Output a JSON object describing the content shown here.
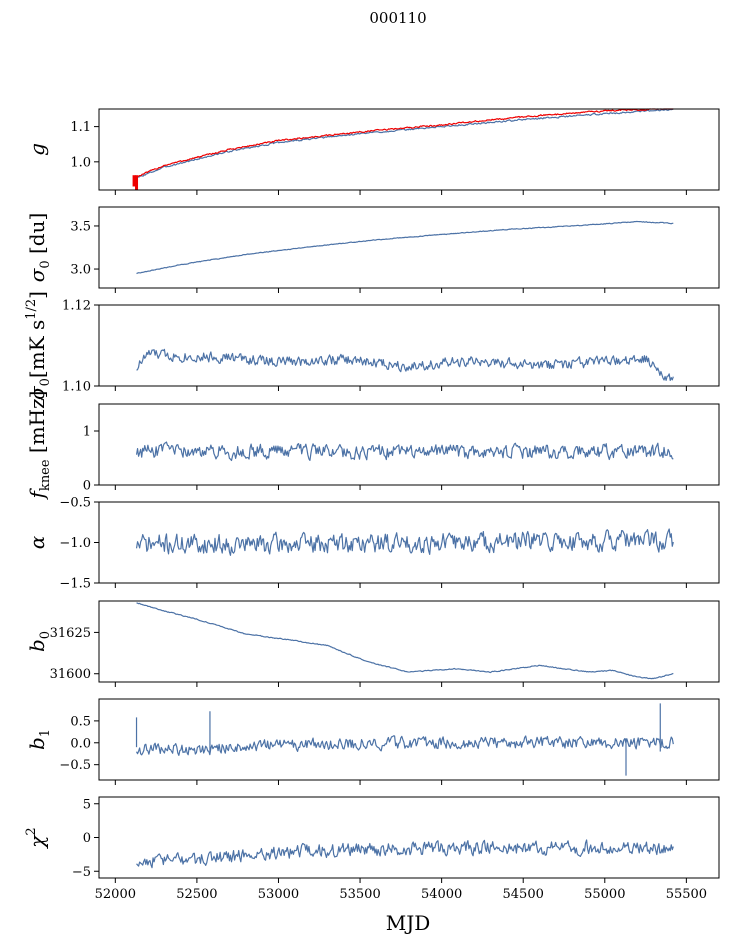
{
  "figure": {
    "title": "000110",
    "xlabel": "MJD"
  },
  "chart_data": [
    {
      "type": "line",
      "ylabel_main": "g",
      "ylabel_sub": "",
      "ylabel_sup": "",
      "xlim": [
        51900,
        55700
      ],
      "ylim": [
        0.92,
        1.15
      ],
      "yticks": [
        1.0,
        1.1
      ],
      "ytick_labels": [
        "1.0",
        "1.1"
      ],
      "series": [
        {
          "color": "#4c72a6",
          "width": 1.3,
          "noise": 0.002,
          "points": [
            [
              52120,
              0.952
            ],
            [
              52300,
              0.985
            ],
            [
              52700,
              1.03
            ],
            [
              53000,
              1.055
            ],
            [
              53500,
              1.08
            ],
            [
              54000,
              1.1
            ],
            [
              54500,
              1.12
            ],
            [
              55000,
              1.137
            ],
            [
              55300,
              1.145
            ],
            [
              55420,
              1.15
            ]
          ]
        },
        {
          "color": "#ee0000",
          "width": 2.6,
          "noise": 0.002,
          "points": [
            [
              52120,
              0.955
            ],
            [
              52300,
              0.99
            ],
            [
              52700,
              1.035
            ],
            [
              53000,
              1.06
            ],
            [
              53500,
              1.085
            ],
            [
              54000,
              1.105
            ],
            [
              54500,
              1.128
            ],
            [
              55000,
              1.145
            ],
            [
              55300,
              1.15
            ],
            [
              55420,
              1.152
            ]
          ]
        }
      ],
      "spikes": [
        {
          "x": 52130,
          "y0": 0.92,
          "y1": 0.962,
          "color": "#ee0000"
        },
        {
          "x": 52115,
          "y0": 0.93,
          "y1": 0.962,
          "color": "#ee0000"
        }
      ]
    },
    {
      "type": "line",
      "ylabel_main": "σ",
      "ylabel_sub": "0",
      "ylabel_sup": "",
      "ylabel_tail": " [du]",
      "xlim": [
        51900,
        55700
      ],
      "ylim": [
        2.78,
        3.72
      ],
      "yticks": [
        3.0,
        3.5
      ],
      "ytick_labels": [
        "3.0",
        "3.5"
      ],
      "series": [
        {
          "color": "#4c72a6",
          "width": 1.2,
          "noise": 0.004,
          "points": [
            [
              52130,
              2.95
            ],
            [
              52400,
              3.05
            ],
            [
              52800,
              3.17
            ],
            [
              53200,
              3.26
            ],
            [
              53600,
              3.34
            ],
            [
              54000,
              3.4
            ],
            [
              54400,
              3.46
            ],
            [
              54800,
              3.5
            ],
            [
              55200,
              3.55
            ],
            [
              55420,
              3.53
            ]
          ]
        }
      ]
    },
    {
      "type": "line",
      "ylabel_main": "σ",
      "ylabel_sub": "0",
      "ylabel_sup": "1/2",
      "ylabel_tail": "[mK s",
      "xlim": [
        51900,
        55700
      ],
      "ylim": [
        1.1,
        1.12
      ],
      "yticks": [
        1.1,
        1.12
      ],
      "ytick_labels": [
        "1.10",
        "1.12"
      ],
      "series": [
        {
          "color": "#4c72a6",
          "width": 1.2,
          "noise": 0.0012,
          "seed": 7,
          "points": [
            [
              52130,
              1.1045
            ],
            [
              52200,
              1.108
            ],
            [
              52350,
              1.1075
            ],
            [
              52700,
              1.107
            ],
            [
              53000,
              1.106
            ],
            [
              53400,
              1.1065
            ],
            [
              53800,
              1.105
            ],
            [
              54200,
              1.106
            ],
            [
              54600,
              1.105
            ],
            [
              55000,
              1.106
            ],
            [
              55250,
              1.1065
            ],
            [
              55420,
              1.1015
            ]
          ]
        }
      ]
    },
    {
      "type": "line",
      "ylabel_main": "f",
      "ylabel_sub": "knee",
      "ylabel_sup": "",
      "ylabel_tail": " [mHz]",
      "xlim": [
        51900,
        55700
      ],
      "ylim": [
        0,
        1.5
      ],
      "yticks": [
        0,
        1
      ],
      "ytick_labels": [
        "0",
        "1"
      ],
      "series": [
        {
          "color": "#4c72a6",
          "width": 1.2,
          "noise": 0.12,
          "seed": 11,
          "points": [
            [
              52130,
              0.62
            ],
            [
              53000,
              0.62
            ],
            [
              54000,
              0.6
            ],
            [
              55000,
              0.62
            ],
            [
              55420,
              0.62
            ]
          ]
        }
      ]
    },
    {
      "type": "line",
      "ylabel_main": "α",
      "ylabel_sub": "",
      "ylabel_sup": "",
      "xlim": [
        51900,
        55700
      ],
      "ylim": [
        -1.5,
        -0.5
      ],
      "yticks": [
        -1.5,
        -1.0,
        -0.5
      ],
      "ytick_labels": [
        "−1.5",
        "−1.0",
        "−0.5"
      ],
      "series": [
        {
          "color": "#4c72a6",
          "width": 1.2,
          "noise": 0.11,
          "seed": 19,
          "points": [
            [
              52130,
              -1.02
            ],
            [
              53000,
              -1.02
            ],
            [
              54000,
              -1.0
            ],
            [
              55000,
              -0.98
            ],
            [
              55420,
              -0.98
            ]
          ]
        }
      ]
    },
    {
      "type": "line",
      "ylabel_main": "b",
      "ylabel_sub": "0",
      "ylabel_sup": "",
      "xlim": [
        51900,
        55700
      ],
      "ylim": [
        31595,
        31644
      ],
      "yticks": [
        31600,
        31625
      ],
      "ytick_labels": [
        "31600",
        "31625"
      ],
      "series": [
        {
          "color": "#4c72a6",
          "width": 1.2,
          "noise": 0.25,
          "seed": 23,
          "points": [
            [
              52130,
              31643
            ],
            [
              52300,
              31638
            ],
            [
              52500,
              31633
            ],
            [
              52800,
              31624
            ],
            [
              53100,
              31620
            ],
            [
              53300,
              31617
            ],
            [
              53550,
              31607
            ],
            [
              53800,
              31601
            ],
            [
              54100,
              31603
            ],
            [
              54300,
              31601
            ],
            [
              54600,
              31605
            ],
            [
              54900,
              31601
            ],
            [
              55050,
              31602
            ],
            [
              55200,
              31598
            ],
            [
              55300,
              31597
            ],
            [
              55420,
              31600
            ]
          ]
        }
      ]
    },
    {
      "type": "line",
      "ylabel_main": "b",
      "ylabel_sub": "1",
      "ylabel_sup": "",
      "xlim": [
        51900,
        55700
      ],
      "ylim": [
        -0.85,
        1.0
      ],
      "yticks": [
        -0.5,
        0.0,
        0.5
      ],
      "ytick_labels": [
        "−0.5",
        "0.0",
        "0.5"
      ],
      "series": [
        {
          "color": "#4c72a6",
          "width": 1.2,
          "noise": 0.12,
          "seed": 31,
          "points": [
            [
              52130,
              -0.15
            ],
            [
              52500,
              -0.15
            ],
            [
              53000,
              -0.05
            ],
            [
              54000,
              0.0
            ],
            [
              54800,
              0.0
            ],
            [
              55420,
              0.0
            ]
          ]
        }
      ],
      "spikes": [
        {
          "x": 52130,
          "y0": -0.1,
          "y1": 0.58,
          "color": "#4c72a6"
        },
        {
          "x": 52580,
          "y0": -0.2,
          "y1": 0.72,
          "color": "#4c72a6"
        },
        {
          "x": 55130,
          "y0": -0.75,
          "y1": 0.1,
          "color": "#4c72a6"
        },
        {
          "x": 55340,
          "y0": -0.2,
          "y1": 0.9,
          "color": "#4c72a6"
        }
      ]
    },
    {
      "type": "line",
      "ylabel_main": "χ",
      "ylabel_sub": "",
      "ylabel_sup": "2",
      "xlim": [
        51900,
        55700
      ],
      "ylim": [
        -6,
        6
      ],
      "yticks": [
        -5,
        0,
        5
      ],
      "ytick_labels": [
        "−5",
        "0",
        "5"
      ],
      "series": [
        {
          "color": "#4c72a6",
          "width": 1.2,
          "noise": 0.9,
          "seed": 41,
          "points": [
            [
              52130,
              -3.5
            ],
            [
              52500,
              -3.2
            ],
            [
              53000,
              -2.2
            ],
            [
              53500,
              -1.8
            ],
            [
              54000,
              -1.6
            ],
            [
              55000,
              -1.5
            ],
            [
              55420,
              -1.8
            ]
          ]
        }
      ]
    }
  ],
  "xticks": [
    52000,
    52500,
    53000,
    53500,
    54000,
    54500,
    55000,
    55500
  ],
  "xtick_labels": [
    "52000",
    "52500",
    "53000",
    "53500",
    "54000",
    "54500",
    "55000",
    "55500"
  ]
}
